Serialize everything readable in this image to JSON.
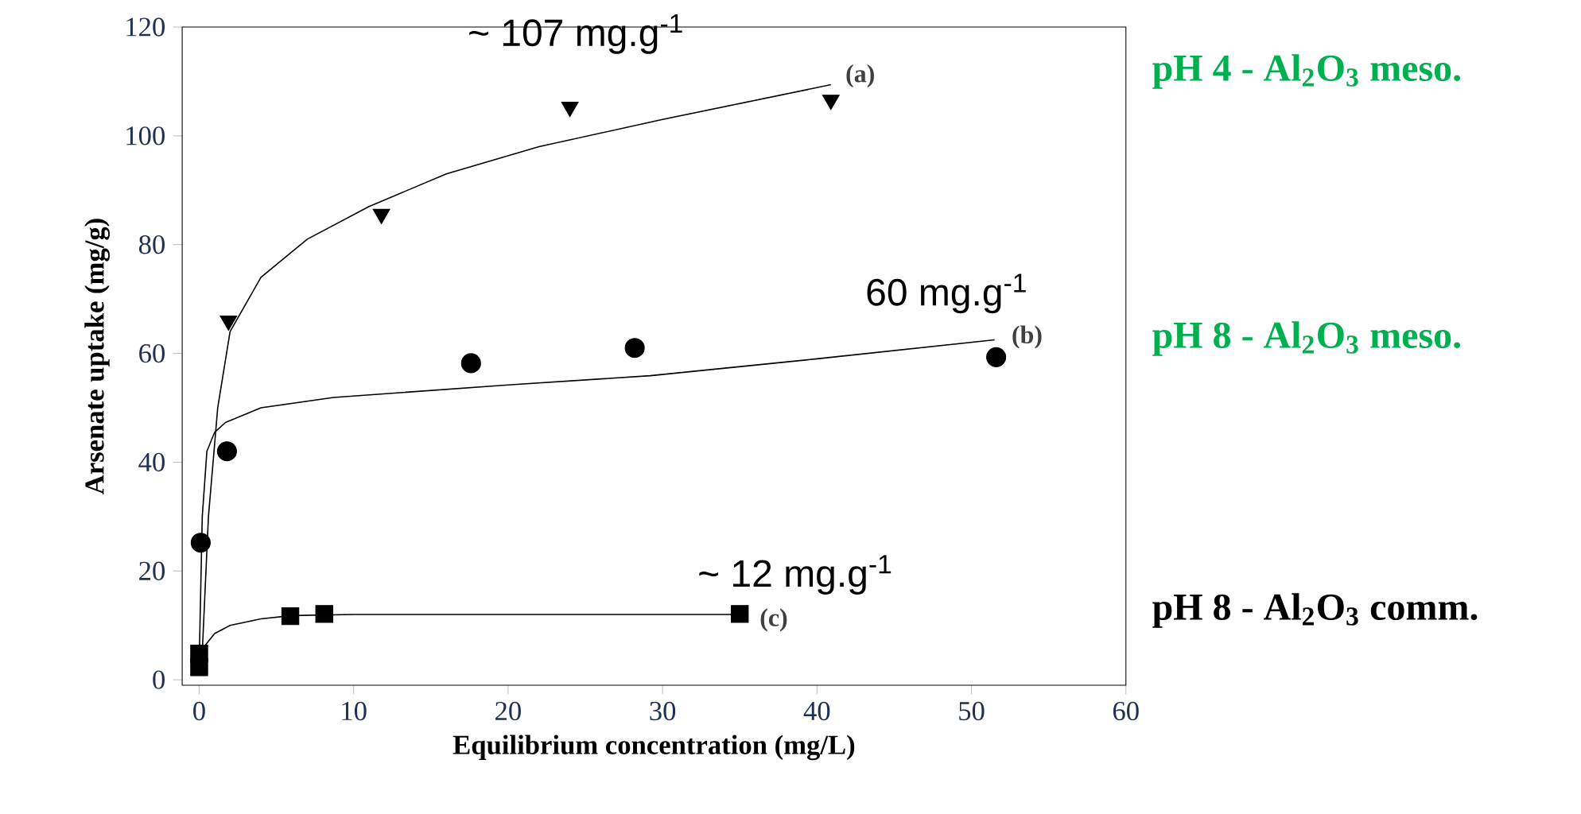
{
  "chart_data": {
    "type": "scatter",
    "xlabel": "Equilibrium concentration (mg/L)",
    "ylabel": "Arsenate uptake (mg/g)",
    "xlim": [
      -1.1,
      60
    ],
    "ylim": [
      -1,
      120
    ],
    "xticks": [
      0,
      10,
      20,
      30,
      40,
      50,
      60
    ],
    "yticks": [
      0,
      20,
      40,
      60,
      80,
      100,
      120
    ],
    "series": [
      {
        "marker": "triangle",
        "color": "#000000",
        "x": [
          1.9,
          11.8,
          24.0,
          40.9
        ],
        "values": [
          66.0,
          85.6,
          105.3,
          106.6
        ]
      },
      {
        "marker": "circle",
        "color": "#000000",
        "x": [
          0.1,
          1.8,
          17.6,
          28.2,
          51.6
        ],
        "values": [
          25.2,
          42.0,
          58.2,
          61.0,
          59.3
        ]
      },
      {
        "marker": "square",
        "color": "#000000",
        "x": [
          0,
          0,
          5.9,
          8.1,
          35.0
        ],
        "values": [
          2.3,
          4.8,
          11.7,
          12.1,
          12.1
        ]
      },
      {
        "type": "line",
        "marker": "none",
        "color": "#000000",
        "x": [
          0.2,
          0.6,
          1.2,
          2,
          4,
          7,
          11,
          16,
          22,
          30,
          40.9
        ],
        "values": [
          5,
          30,
          50,
          64,
          74,
          81,
          87,
          93,
          98,
          103,
          109.4
        ]
      },
      {
        "type": "line",
        "marker": "none",
        "color": "#000000",
        "x": [
          0,
          0.2,
          0.5,
          1,
          1.7,
          4,
          8.7,
          20,
          29.2,
          40,
          51.5
        ],
        "values": [
          3,
          30,
          42,
          45.5,
          47.3,
          50,
          51.9,
          54.2,
          55.9,
          59,
          62.5
        ]
      },
      {
        "type": "line",
        "marker": "none",
        "color": "#000000",
        "x": [
          0,
          0.3,
          1,
          2,
          4,
          6,
          10,
          35
        ],
        "values": [
          2,
          6,
          8.5,
          10,
          11.2,
          11.8,
          12,
          12
        ]
      }
    ],
    "annotations": [
      "~ 107 mg.g$^{-1}$",
      "60 mg.g$^{-1}$",
      "~ 12 mg.g$^{-1}$",
      "(a)",
      "(b)",
      "(c)",
      "pH 4 - Al$_{2}$O$_{3}$ meso.",
      "pH  8 - Al$_{2}$O$_{3}$ meso.",
      "pH 8 - Al$_{2}$O$_{3}$ comm."
    ]
  }
}
